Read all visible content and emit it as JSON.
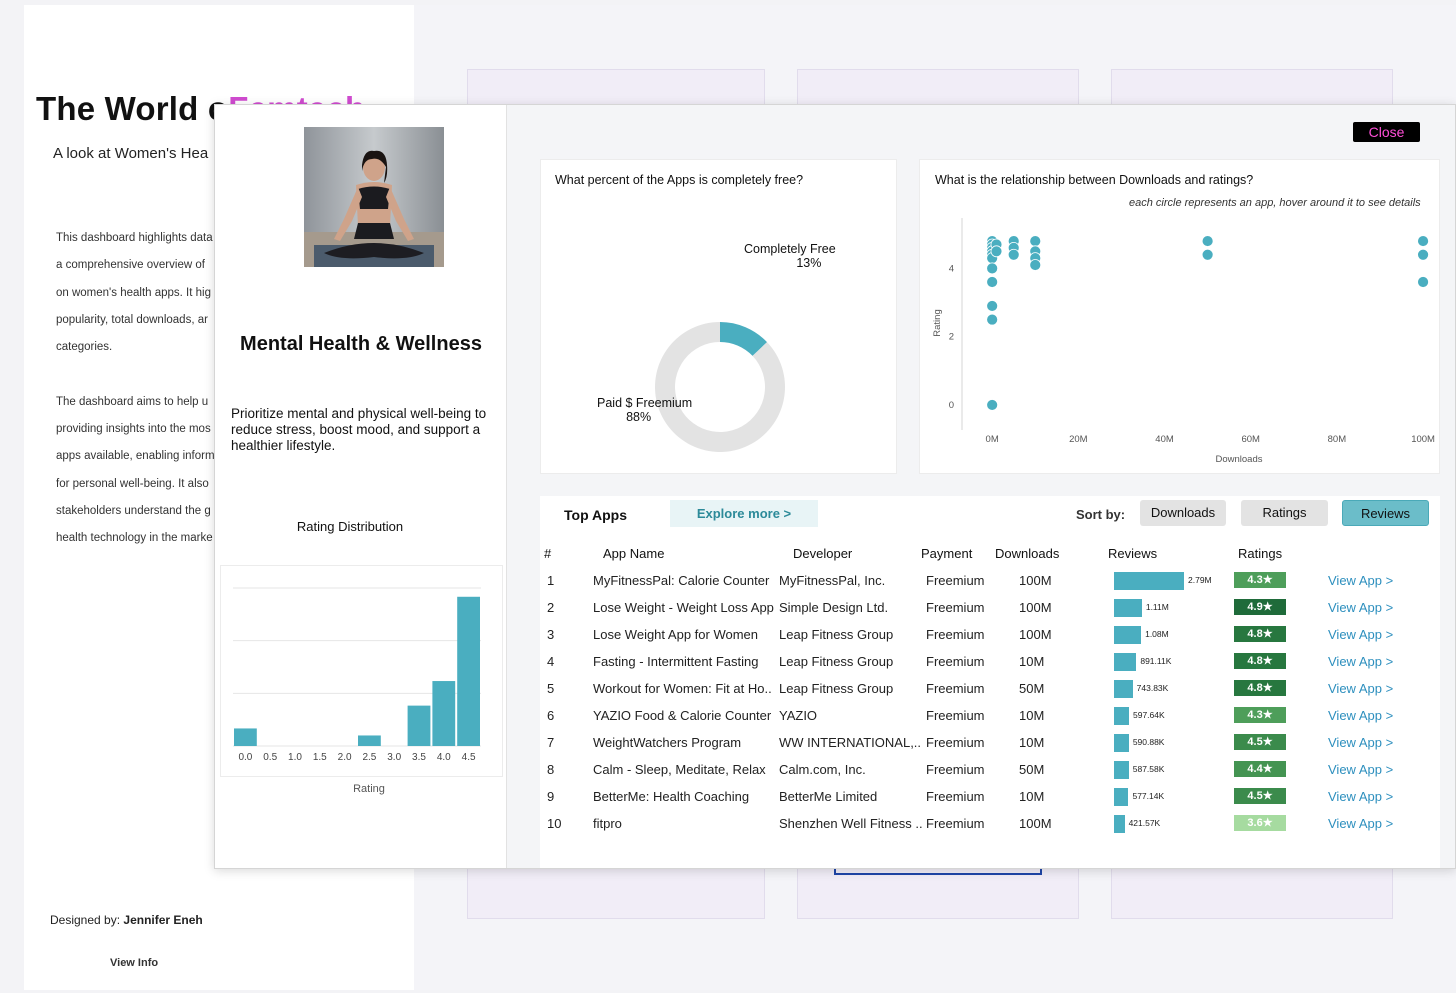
{
  "background": {
    "title_main": "The World o",
    "title_accent": "Femtech",
    "subtitle": "A look at Women's Hea",
    "paragraph_lines": [
      "This dashboard highlights data",
      "a comprehensive overview of",
      "on women's health apps. It hig",
      "popularity, total downloads, ar",
      "categories.",
      "",
      "The dashboard aims to help u",
      "providing insights into the mos",
      "apps available, enabling inform",
      "for personal well-being. It also",
      "stakeholders understand the g",
      "health technology in the marke"
    ],
    "designed_label": "Designed by:",
    "designed_name": "Jennifer Eneh",
    "view_info": "View Info"
  },
  "modal": {
    "close_label": "Close",
    "category_title": "Mental Health & Wellness",
    "category_description": "Prioritize mental and physical well-being to reduce stress, boost mood, and support a healthier lifestyle.",
    "rating_distribution_title": "Rating Distribution",
    "rating_axis_label": "Rating",
    "pie_question": "What percent of the Apps is completely free?",
    "pie_label_free": "Completely Free",
    "pie_pct_free": "13%",
    "pie_label_paid": "Paid $ Freemium",
    "pie_pct_paid": "88%",
    "scatter_question": "What is the relationship between Downloads and ratings?",
    "scatter_note": "each circle represents an app, hover around it to see details",
    "table": {
      "title": "Top Apps",
      "explore_label": "Explore more >",
      "sort_label": "Sort by:",
      "sort_downloads": "Downloads",
      "sort_ratings": "Ratings",
      "sort_reviews": "Reviews",
      "col_num": "#",
      "col_name": "App Name",
      "col_dev": "Developer",
      "col_payment": "Payment",
      "col_downloads": "Downloads",
      "col_reviews": "Reviews",
      "col_ratings": "Ratings",
      "view_link": "View App >",
      "rows": [
        {
          "num": "1",
          "name": "MyFitnessPal: Calorie Counter",
          "dev": "MyFitnessPal, Inc.",
          "payment": "Freemium",
          "downloads": "100M",
          "reviews": 2790000,
          "reviews_label": "2.79M",
          "rating": "4.3★",
          "rating_color": "#4e9e5a"
        },
        {
          "num": "2",
          "name": "Lose Weight - Weight Loss App",
          "dev": "Simple Design Ltd.",
          "payment": "Freemium",
          "downloads": "100M",
          "reviews": 1110000,
          "reviews_label": "1.11M",
          "rating": "4.9★",
          "rating_color": "#1f6b3a"
        },
        {
          "num": "3",
          "name": "Lose Weight App for Women",
          "dev": "Leap Fitness Group",
          "payment": "Freemium",
          "downloads": "100M",
          "reviews": 1080000,
          "reviews_label": "1.08M",
          "rating": "4.8★",
          "rating_color": "#27773f"
        },
        {
          "num": "4",
          "name": "Fasting - Intermittent Fasting",
          "dev": "Leap Fitness Group",
          "payment": "Freemium",
          "downloads": "10M",
          "reviews": 891110,
          "reviews_label": "891.11K",
          "rating": "4.8★",
          "rating_color": "#27773f"
        },
        {
          "num": "5",
          "name": "Workout for Women: Fit at Ho..",
          "dev": "Leap Fitness Group",
          "payment": "Freemium",
          "downloads": "50M",
          "reviews": 743830,
          "reviews_label": "743.83K",
          "rating": "4.8★",
          "rating_color": "#27773f"
        },
        {
          "num": "6",
          "name": "YAZIO Food & Calorie Counter",
          "dev": "YAZIO",
          "payment": "Freemium",
          "downloads": "10M",
          "reviews": 597640,
          "reviews_label": "597.64K",
          "rating": "4.3★",
          "rating_color": "#4e9e5a"
        },
        {
          "num": "7",
          "name": "WeightWatchers Program",
          "dev": "WW INTERNATIONAL,..",
          "payment": "Freemium",
          "downloads": "10M",
          "reviews": 590880,
          "reviews_label": "590.88K",
          "rating": "4.5★",
          "rating_color": "#3b8b4c"
        },
        {
          "num": "8",
          "name": "Calm - Sleep, Meditate, Relax",
          "dev": "Calm.com, Inc.",
          "payment": "Freemium",
          "downloads": "50M",
          "reviews": 587580,
          "reviews_label": "587.58K",
          "rating": "4.4★",
          "rating_color": "#449452"
        },
        {
          "num": "9",
          "name": "BetterMe: Health Coaching",
          "dev": "BetterMe Limited",
          "payment": "Freemium",
          "downloads": "10M",
          "reviews": 577140,
          "reviews_label": "577.14K",
          "rating": "4.5★",
          "rating_color": "#3b8b4c"
        },
        {
          "num": "10",
          "name": "fitpro",
          "dev": "Shenzhen Well Fitness ..",
          "payment": "Freemium",
          "downloads": "100M",
          "reviews": 421570,
          "reviews_label": "421.57K",
          "rating": "3.6★",
          "rating_color": "#a6dba0"
        }
      ]
    }
  },
  "chart_data": [
    {
      "type": "bar",
      "title": "Rating Distribution",
      "xlabel": "Rating",
      "categories": [
        "0.0",
        "0.5",
        "1.0",
        "1.5",
        "2.0",
        "2.5",
        "3.0",
        "3.5",
        "4.0",
        "4.5"
      ],
      "values": [
        1,
        0,
        0,
        0,
        0,
        0.6,
        0,
        2.3,
        3.7,
        8.5
      ],
      "ylim": [
        0,
        9
      ]
    },
    {
      "type": "pie",
      "title": "What percent of the Apps is completely free?",
      "labels": [
        "Completely Free",
        "Paid $ Freemium"
      ],
      "values": [
        13,
        88
      ],
      "donut": true
    },
    {
      "type": "scatter",
      "title": "What is the relationship between Downloads and ratings?",
      "xlabel": "Downloads",
      "ylabel": "Rating",
      "xticks": [
        "0M",
        "20M",
        "40M",
        "60M",
        "80M",
        "100M"
      ],
      "yticks": [
        "0",
        "2",
        "4"
      ],
      "xlim": [
        -7,
        103
      ],
      "ylim": [
        -0.5,
        5.3
      ],
      "x": [
        0,
        0,
        0,
        0,
        0,
        0,
        0,
        0,
        0,
        0,
        0,
        1,
        1,
        5,
        5,
        5,
        10,
        10,
        10,
        10,
        50,
        50,
        100,
        100,
        100
      ],
      "y": [
        4.8,
        4.7,
        4.6,
        4.5,
        4.4,
        4.3,
        4.0,
        3.6,
        2.9,
        2.5,
        0.0,
        4.7,
        4.5,
        4.8,
        4.6,
        4.4,
        4.8,
        4.5,
        4.3,
        4.1,
        4.8,
        4.4,
        4.8,
        4.4,
        3.6
      ]
    }
  ]
}
